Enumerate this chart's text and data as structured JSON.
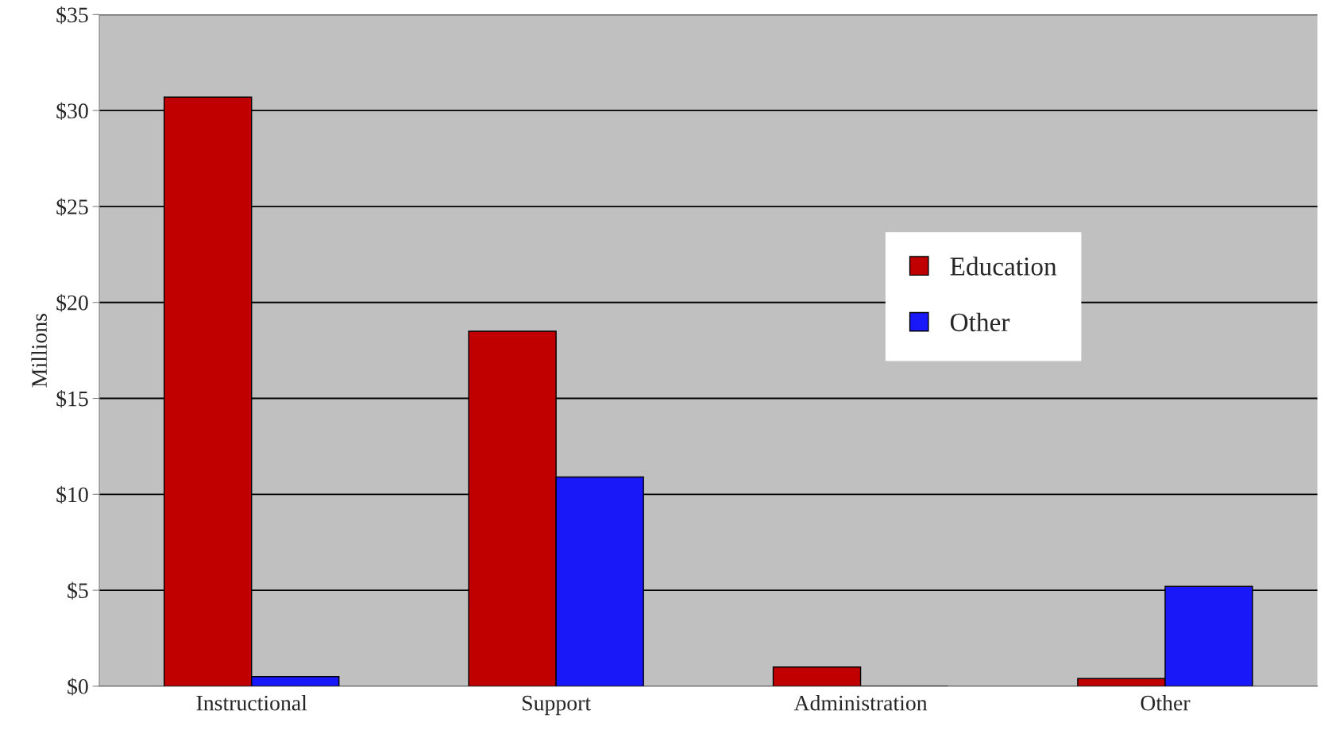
{
  "chart_data": {
    "type": "bar",
    "ylabel": "Millions",
    "categories": [
      "Instructional",
      "Support",
      "Administration",
      "Other"
    ],
    "series": [
      {
        "name": "Education",
        "color": "#c00000",
        "values": [
          30.7,
          18.5,
          1.0,
          0.4
        ]
      },
      {
        "name": "Other",
        "color": "#1818f8",
        "values": [
          0.5,
          10.9,
          null,
          5.2
        ]
      }
    ],
    "ylim": [
      0,
      35
    ],
    "yticks": [
      {
        "value": 0,
        "label": "$0"
      },
      {
        "value": 5,
        "label": "$5"
      },
      {
        "value": 10,
        "label": "$10"
      },
      {
        "value": 15,
        "label": "$15"
      },
      {
        "value": 20,
        "label": "$20"
      },
      {
        "value": 25,
        "label": "$25"
      },
      {
        "value": 30,
        "label": "$30"
      },
      {
        "value": 35,
        "label": "$35"
      }
    ],
    "grid": "y",
    "legend": "right"
  }
}
